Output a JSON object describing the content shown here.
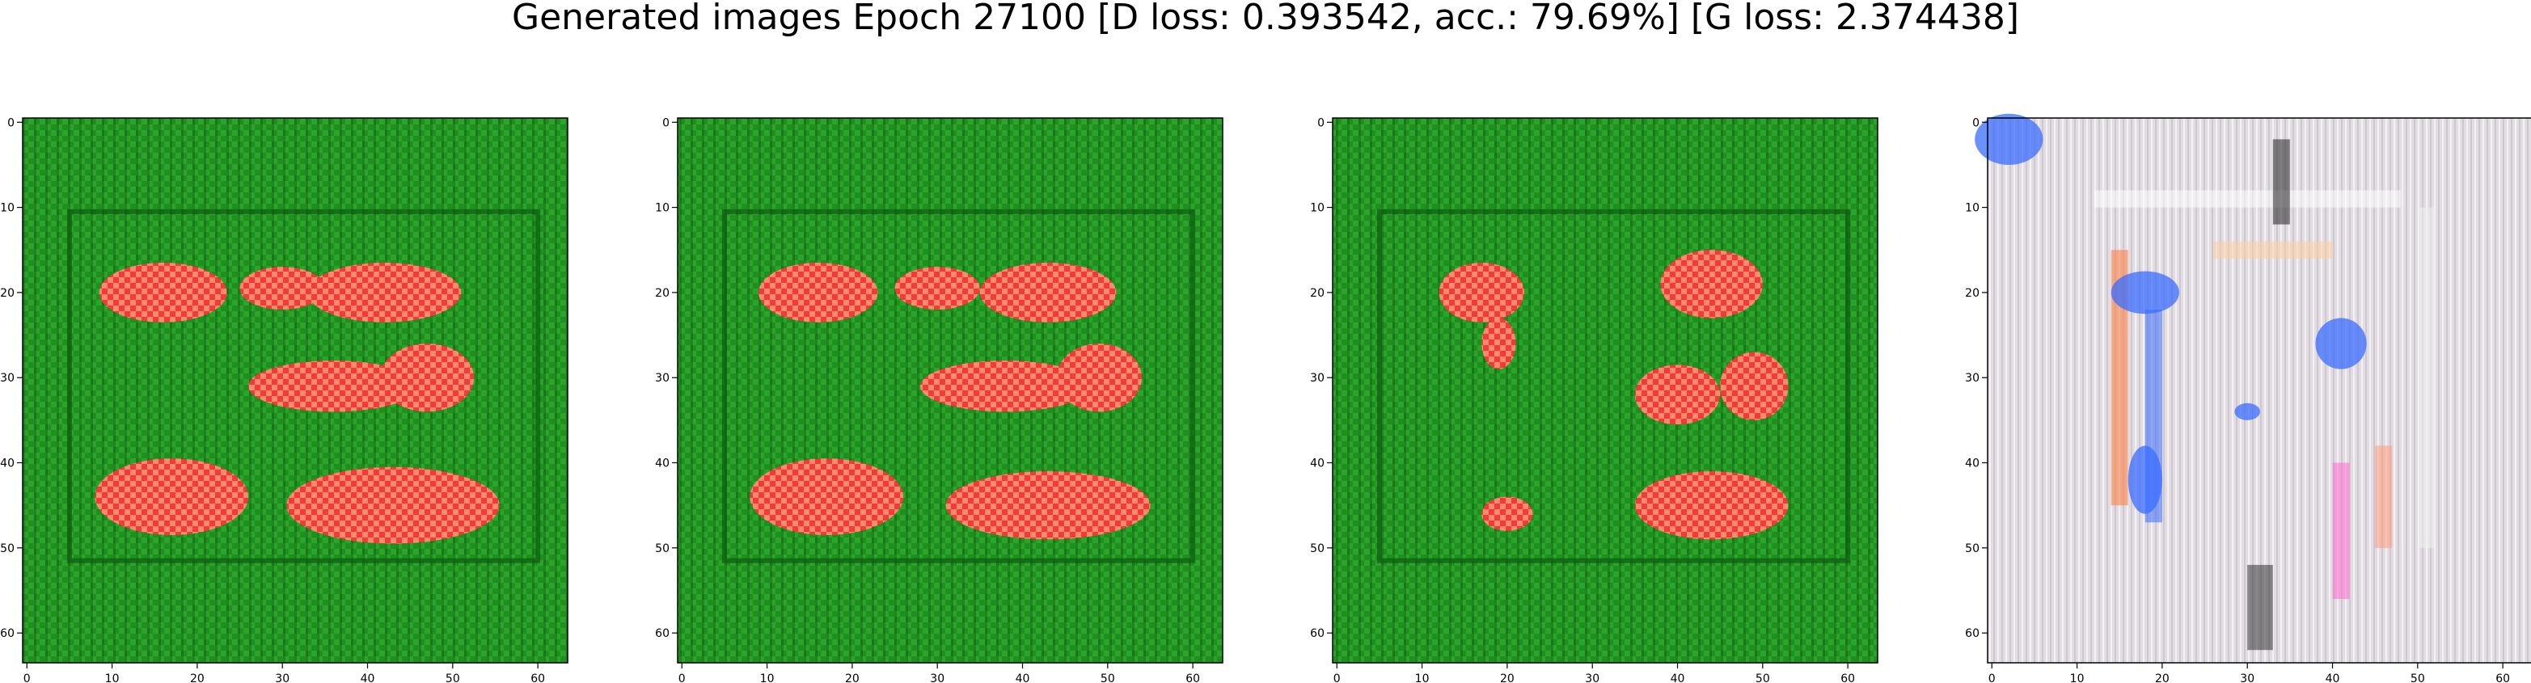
{
  "figure": {
    "title": "Generated images Epoch 27100 [D loss: 0.393542, acc.: 79.69%] [G loss: 2.374438]"
  },
  "axes": {
    "x_ticks": [
      "0",
      "10",
      "20",
      "30",
      "40",
      "50",
      "60"
    ],
    "y_ticks": [
      "0",
      "10",
      "20",
      "30",
      "40",
      "50",
      "60"
    ],
    "image_extent": [
      -0.5,
      63.5
    ]
  },
  "panels": [
    {
      "name": "sample-1",
      "palette": {
        "background": "#1f8f1f",
        "border_dark": "#0e5a10",
        "stripe": "#0b4a0c",
        "blob": "#f23a3a",
        "blob_highlight": "#ff8a6a"
      },
      "blobs": [
        {
          "cx": 16,
          "cy": 20,
          "rx": 7.5,
          "ry": 3.5
        },
        {
          "cx": 30,
          "cy": 19.5,
          "rx": 5,
          "ry": 2.5
        },
        {
          "cx": 42,
          "cy": 20,
          "rx": 9,
          "ry": 3.5
        },
        {
          "cx": 36,
          "cy": 31,
          "rx": 10,
          "ry": 3
        },
        {
          "cx": 47,
          "cy": 30,
          "rx": 5.5,
          "ry": 4
        },
        {
          "cx": 17,
          "cy": 44,
          "rx": 9,
          "ry": 4.5
        },
        {
          "cx": 43,
          "cy": 45,
          "rx": 12.5,
          "ry": 4.5
        }
      ]
    },
    {
      "name": "sample-2",
      "palette": {
        "background": "#1f8f1f",
        "border_dark": "#0e5a10",
        "stripe": "#0b4a0c",
        "blob": "#f23a3a",
        "blob_highlight": "#ff8a6a"
      },
      "blobs": [
        {
          "cx": 16,
          "cy": 20,
          "rx": 7,
          "ry": 3.5
        },
        {
          "cx": 30,
          "cy": 19.5,
          "rx": 5,
          "ry": 2.5
        },
        {
          "cx": 43,
          "cy": 20,
          "rx": 8,
          "ry": 3.5
        },
        {
          "cx": 38,
          "cy": 31,
          "rx": 10,
          "ry": 3
        },
        {
          "cx": 49,
          "cy": 30,
          "rx": 5,
          "ry": 4
        },
        {
          "cx": 17,
          "cy": 44,
          "rx": 9,
          "ry": 4.5
        },
        {
          "cx": 43,
          "cy": 45,
          "rx": 12,
          "ry": 4
        }
      ]
    },
    {
      "name": "sample-3",
      "palette": {
        "background": "#1f8f1f",
        "border_dark": "#0e5a10",
        "stripe": "#0b4a0c",
        "blob": "#f23a3a",
        "blob_highlight": "#ff8a6a"
      },
      "blobs": [
        {
          "cx": 17,
          "cy": 20,
          "rx": 5,
          "ry": 3.5
        },
        {
          "cx": 19,
          "cy": 26,
          "rx": 2,
          "ry": 3
        },
        {
          "cx": 44,
          "cy": 19,
          "rx": 6,
          "ry": 4
        },
        {
          "cx": 40,
          "cy": 32,
          "rx": 5,
          "ry": 3.5
        },
        {
          "cx": 49,
          "cy": 31,
          "rx": 4,
          "ry": 4
        },
        {
          "cx": 20,
          "cy": 46,
          "rx": 3,
          "ry": 2
        },
        {
          "cx": 44,
          "cy": 45,
          "rx": 9,
          "ry": 4
        }
      ]
    },
    {
      "name": "sample-4",
      "palette": {
        "background": "#e2dce3",
        "border_dark": "#c8c0cc",
        "stripe": "#b9b2bd",
        "blob": "#3a6cff",
        "blob_highlight": "#8fb4ff"
      },
      "blobs": [
        {
          "cx": 18,
          "cy": 20,
          "rx": 4,
          "ry": 2.5
        },
        {
          "cx": 41,
          "cy": 26,
          "rx": 3,
          "ry": 3
        },
        {
          "cx": 18,
          "cy": 42,
          "rx": 2,
          "ry": 4
        },
        {
          "cx": 2,
          "cy": 2,
          "rx": 4,
          "ry": 3
        },
        {
          "cx": 30,
          "cy": 34,
          "rx": 1.5,
          "ry": 1
        }
      ]
    }
  ]
}
